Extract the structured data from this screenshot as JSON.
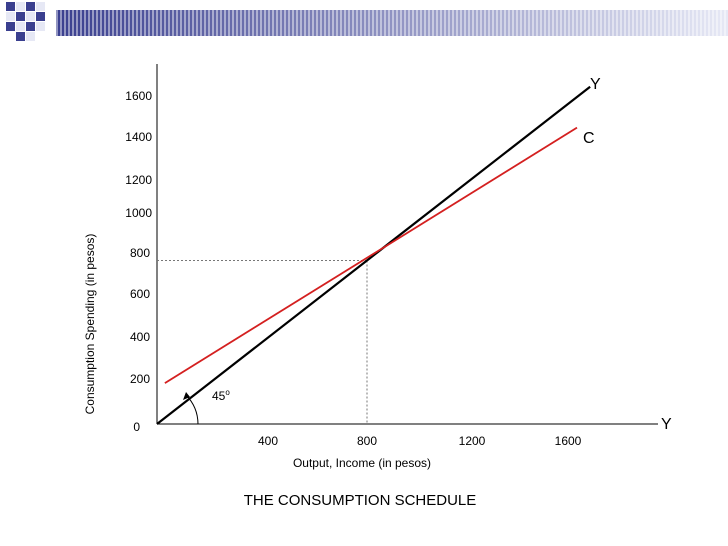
{
  "colors": {
    "consumption_line": "#d42020",
    "income_line": "#000000",
    "banner_dark": "#3a3f8f",
    "banner_light": "#e6e8f5"
  },
  "chart_data": {
    "type": "line",
    "title": "THE CONSUMPTION SCHEDULE",
    "xlabel": "Output, Income (in pesos)",
    "ylabel": "Consumption Spending (in pesos)",
    "x_ticks": [
      "400",
      "800",
      "1200",
      "1600"
    ],
    "y_ticks": [
      "0",
      "200",
      "400",
      "600",
      "800",
      "1000",
      "1200",
      "1400",
      "1600"
    ],
    "xlim": [
      0,
      1900
    ],
    "series": [
      {
        "name": "Y",
        "x": [
          0,
          1650
        ],
        "y": [
          0,
          1650
        ]
      },
      {
        "name": "C",
        "x": [
          30,
          1600
        ],
        "y": [
          200,
          1450
        ]
      }
    ],
    "annotations": {
      "angle": "45",
      "degree_mark": "o",
      "y_axis_end_label": "Y",
      "x_axis_end_label": "Y",
      "c_line_label": "C",
      "break_even": {
        "x": 800,
        "y": 800
      }
    }
  }
}
